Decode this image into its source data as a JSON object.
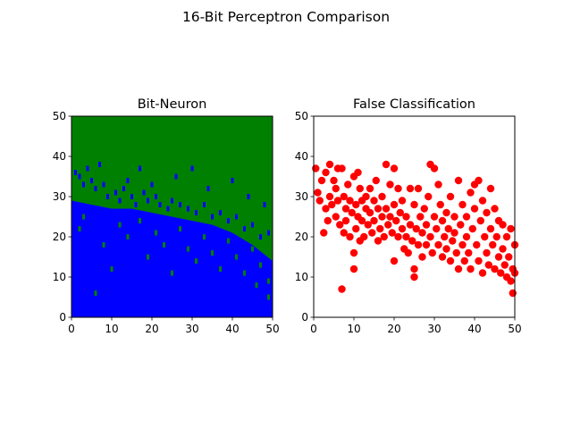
{
  "figure_title": "16-Bit Perceptron Comparison",
  "colors": {
    "class_low": "#0000ff",
    "class_high": "#008000",
    "errors": "#ff0000"
  },
  "chart_data": [
    {
      "type": "heatmap",
      "title": "Bit-Neuron",
      "xlim": [
        0,
        50
      ],
      "ylim": [
        0,
        50
      ],
      "xticks": [
        "0",
        "10",
        "20",
        "30",
        "40",
        "50"
      ],
      "yticks": [
        "0",
        "10",
        "20",
        "30",
        "40",
        "50"
      ],
      "grid": false,
      "boundary_x": [
        0,
        5,
        10,
        15,
        20,
        25,
        30,
        35,
        40,
        45,
        50
      ],
      "boundary_y": [
        29,
        28,
        27,
        27,
        26,
        25,
        24,
        23,
        21,
        18,
        14
      ],
      "scatter_blue_points": [
        [
          1,
          36
        ],
        [
          2,
          35
        ],
        [
          3,
          33
        ],
        [
          5,
          34
        ],
        [
          6,
          32
        ],
        [
          8,
          33
        ],
        [
          9,
          30
        ],
        [
          11,
          31
        ],
        [
          12,
          29
        ],
        [
          13,
          32
        ],
        [
          15,
          30
        ],
        [
          16,
          28
        ],
        [
          18,
          31
        ],
        [
          19,
          29
        ],
        [
          21,
          30
        ],
        [
          22,
          28
        ],
        [
          24,
          27
        ],
        [
          25,
          29
        ],
        [
          27,
          28
        ],
        [
          29,
          27
        ],
        [
          31,
          26
        ],
        [
          33,
          28
        ],
        [
          35,
          25
        ],
        [
          37,
          26
        ],
        [
          39,
          24
        ],
        [
          41,
          25
        ],
        [
          43,
          22
        ],
        [
          45,
          23
        ],
        [
          47,
          20
        ],
        [
          49,
          21
        ],
        [
          4,
          37
        ],
        [
          7,
          38
        ],
        [
          14,
          34
        ],
        [
          17,
          37
        ],
        [
          20,
          33
        ],
        [
          26,
          35
        ],
        [
          30,
          37
        ],
        [
          34,
          32
        ],
        [
          40,
          34
        ],
        [
          44,
          30
        ],
        [
          48,
          28
        ]
      ],
      "scatter_green_points": [
        [
          2,
          22
        ],
        [
          3,
          25
        ],
        [
          6,
          6
        ],
        [
          8,
          18
        ],
        [
          10,
          12
        ],
        [
          12,
          23
        ],
        [
          14,
          20
        ],
        [
          17,
          24
        ],
        [
          19,
          15
        ],
        [
          21,
          21
        ],
        [
          23,
          18
        ],
        [
          25,
          11
        ],
        [
          27,
          22
        ],
        [
          29,
          17
        ],
        [
          31,
          14
        ],
        [
          33,
          20
        ],
        [
          35,
          16
        ],
        [
          37,
          12
        ],
        [
          39,
          19
        ],
        [
          41,
          15
        ],
        [
          43,
          11
        ],
        [
          45,
          17
        ],
        [
          47,
          13
        ],
        [
          49,
          9
        ],
        [
          49,
          5
        ],
        [
          46,
          8
        ]
      ]
    },
    {
      "type": "scatter",
      "title": "False Classification",
      "xlim": [
        0,
        50
      ],
      "ylim": [
        0,
        50
      ],
      "xticks": [
        "0",
        "10",
        "20",
        "30",
        "40",
        "50"
      ],
      "yticks": [
        "0",
        "10",
        "20",
        "30",
        "40",
        "50"
      ],
      "grid": false,
      "points": [
        [
          0.5,
          37
        ],
        [
          1,
          31
        ],
        [
          1.5,
          29
        ],
        [
          2,
          34
        ],
        [
          2.5,
          21
        ],
        [
          3,
          27
        ],
        [
          3,
          36
        ],
        [
          3.5,
          24
        ],
        [
          4,
          38
        ],
        [
          4,
          30
        ],
        [
          4.5,
          28
        ],
        [
          5,
          34
        ],
        [
          5.5,
          32
        ],
        [
          5.5,
          25
        ],
        [
          6,
          37
        ],
        [
          6,
          29
        ],
        [
          6.5,
          23
        ],
        [
          7,
          37
        ],
        [
          7,
          7
        ],
        [
          7.5,
          30
        ],
        [
          7.5,
          21
        ],
        [
          8,
          27
        ],
        [
          8,
          24
        ],
        [
          8.5,
          33
        ],
        [
          9,
          29
        ],
        [
          9,
          20
        ],
        [
          9.5,
          26
        ],
        [
          10,
          35
        ],
        [
          10,
          16
        ],
        [
          10,
          12
        ],
        [
          10.5,
          28
        ],
        [
          10.5,
          22
        ],
        [
          11,
          36
        ],
        [
          11,
          25
        ],
        [
          11.5,
          32
        ],
        [
          11.5,
          19
        ],
        [
          12,
          29
        ],
        [
          12,
          24
        ],
        [
          12.5,
          20
        ],
        [
          13,
          30
        ],
        [
          13,
          27
        ],
        [
          13.5,
          23
        ],
        [
          14,
          32
        ],
        [
          14,
          26
        ],
        [
          14.5,
          21
        ],
        [
          15,
          29
        ],
        [
          15,
          24
        ],
        [
          15.5,
          34
        ],
        [
          16,
          27
        ],
        [
          16,
          19
        ],
        [
          16.5,
          22
        ],
        [
          17,
          30
        ],
        [
          17,
          25
        ],
        [
          17.5,
          20
        ],
        [
          18,
          38
        ],
        [
          18,
          27
        ],
        [
          18.5,
          23
        ],
        [
          19,
          33
        ],
        [
          19,
          25
        ],
        [
          19.5,
          21
        ],
        [
          20,
          37
        ],
        [
          20,
          28
        ],
        [
          20,
          14
        ],
        [
          20.5,
          24
        ],
        [
          21,
          32
        ],
        [
          21,
          20
        ],
        [
          21.5,
          26
        ],
        [
          22,
          29
        ],
        [
          22,
          22
        ],
        [
          22.5,
          17
        ],
        [
          23,
          25
        ],
        [
          23,
          20
        ],
        [
          23.5,
          16
        ],
        [
          24,
          32
        ],
        [
          24,
          23
        ],
        [
          24.5,
          19
        ],
        [
          25,
          28
        ],
        [
          25,
          12
        ],
        [
          25,
          10
        ],
        [
          25.5,
          22
        ],
        [
          26,
          32
        ],
        [
          26,
          18
        ],
        [
          26.5,
          25
        ],
        [
          27,
          21
        ],
        [
          27,
          15
        ],
        [
          27.5,
          27
        ],
        [
          28,
          23
        ],
        [
          28,
          18
        ],
        [
          28.5,
          30
        ],
        [
          29,
          38
        ],
        [
          29,
          20
        ],
        [
          29.5,
          16
        ],
        [
          30,
          37
        ],
        [
          30,
          25
        ],
        [
          30.5,
          22
        ],
        [
          31,
          33
        ],
        [
          31,
          18
        ],
        [
          31.5,
          28
        ],
        [
          32,
          24
        ],
        [
          32,
          15
        ],
        [
          32.5,
          20
        ],
        [
          33,
          26
        ],
        [
          33,
          17
        ],
        [
          33.5,
          22
        ],
        [
          34,
          30
        ],
        [
          34,
          14
        ],
        [
          34.5,
          19
        ],
        [
          35,
          25
        ],
        [
          35,
          21
        ],
        [
          35.5,
          16
        ],
        [
          36,
          34
        ],
        [
          36,
          12
        ],
        [
          36.5,
          23
        ],
        [
          37,
          28
        ],
        [
          37,
          18
        ],
        [
          37.5,
          14
        ],
        [
          38,
          25
        ],
        [
          38,
          20
        ],
        [
          38.5,
          16
        ],
        [
          39,
          31
        ],
        [
          39,
          12
        ],
        [
          39.5,
          22
        ],
        [
          40,
          33
        ],
        [
          40,
          27
        ],
        [
          40.5,
          18
        ],
        [
          41,
          34
        ],
        [
          41,
          14
        ],
        [
          41.5,
          24
        ],
        [
          42,
          29
        ],
        [
          42,
          11
        ],
        [
          42.5,
          20
        ],
        [
          43,
          26
        ],
        [
          43,
          16
        ],
        [
          43.5,
          13
        ],
        [
          44,
          32
        ],
        [
          44,
          22
        ],
        [
          44.5,
          18
        ],
        [
          45,
          27
        ],
        [
          45,
          12
        ],
        [
          45.5,
          20
        ],
        [
          46,
          24
        ],
        [
          46,
          15
        ],
        [
          46.5,
          11
        ],
        [
          47,
          23
        ],
        [
          47,
          17
        ],
        [
          47.5,
          13
        ],
        [
          48,
          20
        ],
        [
          48,
          10
        ],
        [
          48.5,
          15
        ],
        [
          49,
          22
        ],
        [
          49,
          9
        ],
        [
          49.5,
          12
        ],
        [
          50,
          18
        ],
        [
          49.5,
          6
        ],
        [
          50,
          11
        ]
      ]
    }
  ]
}
